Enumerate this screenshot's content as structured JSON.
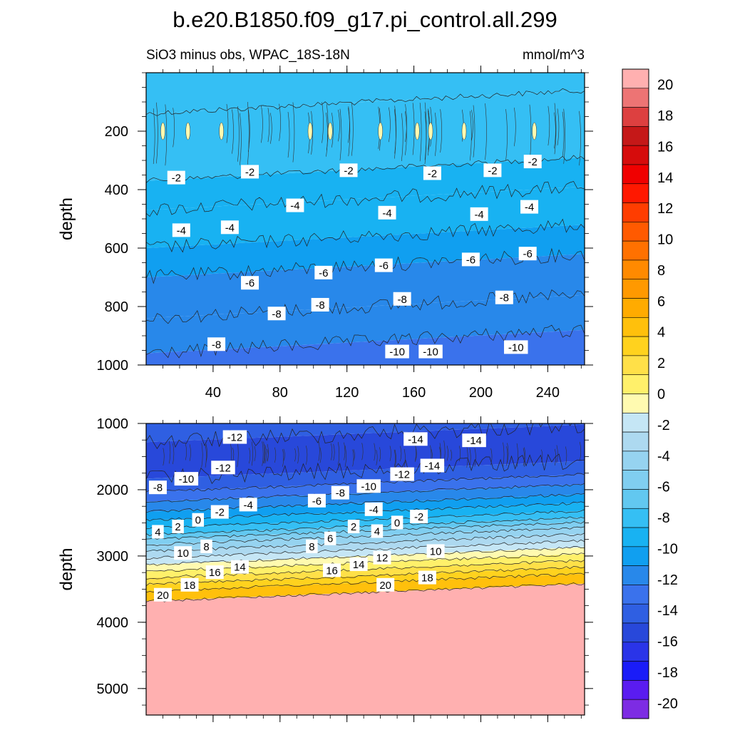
{
  "title": "b.e20.B1850.f09_g17.pi_control.all.299",
  "subtitle": "SiO3 minus obs, WPAC_18S-18N",
  "units": "mmol/m^3",
  "chart_data": [
    {
      "type": "contour",
      "name": "upper-panel",
      "ylabel": "depth",
      "xlim": [
        0,
        262
      ],
      "ylim": [
        0,
        1000
      ],
      "y_reversed": true,
      "x_ticks": [
        40,
        80,
        120,
        160,
        200,
        240
      ],
      "x_tick_labels": [
        "40",
        "80",
        "120",
        "160",
        "200",
        "240"
      ],
      "y_ticks": [
        200,
        400,
        600,
        800,
        1000
      ],
      "y_tick_labels": [
        "200",
        "400",
        "600",
        "800",
        "1000"
      ],
      "bands": [
        {
          "depth_top": 0,
          "depth_bottom": 100,
          "value": -1
        },
        {
          "depth_top": 100,
          "depth_bottom": 330,
          "value": -2
        },
        {
          "depth_top": 330,
          "depth_bottom": 430,
          "value": -3
        },
        {
          "depth_top": 430,
          "depth_bottom": 560,
          "value": -4
        },
        {
          "depth_top": 560,
          "depth_bottom": 660,
          "value": -5
        },
        {
          "depth_top": 660,
          "depth_bottom": 800,
          "value": -7
        },
        {
          "depth_top": 800,
          "depth_bottom": 920,
          "value": -8
        },
        {
          "depth_top": 920,
          "depth_bottom": 1000,
          "value": -9
        }
      ],
      "contour_labels": [
        {
          "text": "-2",
          "x": 18,
          "depth": 360
        },
        {
          "text": "-2",
          "x": 62,
          "depth": 340
        },
        {
          "text": "-2",
          "x": 121,
          "depth": 335
        },
        {
          "text": "-2",
          "x": 171,
          "depth": 345
        },
        {
          "text": "-2",
          "x": 207,
          "depth": 335
        },
        {
          "text": "-2",
          "x": 231,
          "depth": 305
        },
        {
          "text": "-4",
          "x": 21,
          "depth": 540
        },
        {
          "text": "-4",
          "x": 50,
          "depth": 530
        },
        {
          "text": "-4",
          "x": 89,
          "depth": 455
        },
        {
          "text": "-4",
          "x": 144,
          "depth": 480
        },
        {
          "text": "-4",
          "x": 199,
          "depth": 485
        },
        {
          "text": "-4",
          "x": 229,
          "depth": 460
        },
        {
          "text": "-6",
          "x": 62,
          "depth": 720
        },
        {
          "text": "-6",
          "x": 106,
          "depth": 685
        },
        {
          "text": "-6",
          "x": 142,
          "depth": 660
        },
        {
          "text": "-6",
          "x": 194,
          "depth": 640
        },
        {
          "text": "-6",
          "x": 228,
          "depth": 620
        },
        {
          "text": "-8",
          "x": 42,
          "depth": 930
        },
        {
          "text": "-8",
          "x": 78,
          "depth": 825
        },
        {
          "text": "-8",
          "x": 104,
          "depth": 795
        },
        {
          "text": "-8",
          "x": 153,
          "depth": 775
        },
        {
          "text": "-8",
          "x": 214,
          "depth": 770
        },
        {
          "text": "-10",
          "x": 150,
          "depth": 955
        },
        {
          "text": "-10",
          "x": 170,
          "depth": 955
        },
        {
          "text": "-10",
          "x": 221,
          "depth": 940
        }
      ]
    },
    {
      "type": "contour",
      "name": "lower-panel",
      "ylabel": "depth",
      "xlim": [
        0,
        262
      ],
      "ylim": [
        1000,
        5400
      ],
      "y_reversed": true,
      "y_ticks": [
        1000,
        2000,
        3000,
        4000,
        5000
      ],
      "y_tick_labels": [
        "1000",
        "2000",
        "3000",
        "4000",
        "5000"
      ],
      "bands": [
        {
          "depth_top": 1000,
          "depth_bottom": 1150,
          "value": -12
        },
        {
          "depth_top": 1150,
          "depth_bottom": 1700,
          "value": -13
        },
        {
          "depth_top": 1700,
          "depth_bottom": 1900,
          "value": -11
        },
        {
          "depth_top": 1900,
          "depth_bottom": 2050,
          "value": -9
        },
        {
          "depth_top": 2050,
          "depth_bottom": 2200,
          "value": -7
        },
        {
          "depth_top": 2200,
          "depth_bottom": 2330,
          "value": -5
        },
        {
          "depth_top": 2330,
          "depth_bottom": 2450,
          "value": -3
        },
        {
          "depth_top": 2450,
          "depth_bottom": 2550,
          "value": -1
        },
        {
          "depth_top": 2550,
          "depth_bottom": 2620,
          "value": 1
        },
        {
          "depth_top": 2620,
          "depth_bottom": 2700,
          "value": 3
        },
        {
          "depth_top": 2700,
          "depth_bottom": 2800,
          "value": 5
        },
        {
          "depth_top": 2800,
          "depth_bottom": 2900,
          "value": 7
        },
        {
          "depth_top": 2900,
          "depth_bottom": 3000,
          "value": 9
        },
        {
          "depth_top": 3000,
          "depth_bottom": 3100,
          "value": 11
        },
        {
          "depth_top": 3100,
          "depth_bottom": 3200,
          "value": 13
        },
        {
          "depth_top": 3200,
          "depth_bottom": 3300,
          "value": 15
        },
        {
          "depth_top": 3300,
          "depth_bottom": 3400,
          "value": 17
        },
        {
          "depth_top": 3400,
          "depth_bottom": 3550,
          "value": 19
        },
        {
          "depth_top": 3550,
          "depth_bottom": 5400,
          "value": 21
        }
      ],
      "contour_labels": [
        {
          "text": "-12",
          "x": 53,
          "depth": 1210
        },
        {
          "text": "-12",
          "x": 46,
          "depth": 1670
        },
        {
          "text": "-14",
          "x": 161,
          "depth": 1240
        },
        {
          "text": "-14",
          "x": 196,
          "depth": 1260
        },
        {
          "text": "-14",
          "x": 171,
          "depth": 1640
        },
        {
          "text": "-12",
          "x": 153,
          "depth": 1770
        },
        {
          "text": "-10",
          "x": 24,
          "depth": 1840
        },
        {
          "text": "-10",
          "x": 133,
          "depth": 1950
        },
        {
          "text": "-8",
          "x": 7,
          "depth": 1970
        },
        {
          "text": "-8",
          "x": 116,
          "depth": 2050
        },
        {
          "text": "-6",
          "x": 102,
          "depth": 2170
        },
        {
          "text": "-4",
          "x": 61,
          "depth": 2230
        },
        {
          "text": "-4",
          "x": 136,
          "depth": 2300
        },
        {
          "text": "-2",
          "x": 44,
          "depth": 2340
        },
        {
          "text": "-2",
          "x": 163,
          "depth": 2410
        },
        {
          "text": "0",
          "x": 31,
          "depth": 2460
        },
        {
          "text": "0",
          "x": 150,
          "depth": 2500
        },
        {
          "text": "2",
          "x": 19,
          "depth": 2560
        },
        {
          "text": "2",
          "x": 124,
          "depth": 2560
        },
        {
          "text": "4",
          "x": 7,
          "depth": 2640
        },
        {
          "text": "4",
          "x": 138,
          "depth": 2630
        },
        {
          "text": "6",
          "x": 110,
          "depth": 2740
        },
        {
          "text": "8",
          "x": 36,
          "depth": 2860
        },
        {
          "text": "8",
          "x": 99,
          "depth": 2860
        },
        {
          "text": "10",
          "x": 22,
          "depth": 2960
        },
        {
          "text": "10",
          "x": 173,
          "depth": 2930
        },
        {
          "text": "12",
          "x": 141,
          "depth": 3030
        },
        {
          "text": "14",
          "x": 56,
          "depth": 3170
        },
        {
          "text": "14",
          "x": 127,
          "depth": 3130
        },
        {
          "text": "16",
          "x": 41,
          "depth": 3250
        },
        {
          "text": "16",
          "x": 111,
          "depth": 3220
        },
        {
          "text": "18",
          "x": 26,
          "depth": 3440
        },
        {
          "text": "18",
          "x": 168,
          "depth": 3330
        },
        {
          "text": "20",
          "x": 10,
          "depth": 3590
        },
        {
          "text": "20",
          "x": 143,
          "depth": 3440
        }
      ]
    }
  ],
  "colorbar": {
    "levels": [
      -20,
      -18,
      -16,
      -14,
      -12,
      -10,
      -8,
      -6,
      -4,
      -2,
      0,
      2,
      4,
      6,
      8,
      10,
      12,
      14,
      16,
      18,
      20
    ],
    "tick_labels": [
      "20",
      "18",
      "16",
      "14",
      "12",
      "10",
      "8",
      "6",
      "4",
      "2",
      "0",
      "-2",
      "-4",
      "-6",
      "-8",
      "-10",
      "-12",
      "-14",
      "-16",
      "-18",
      "-20"
    ],
    "colors": [
      "#7d2ce3",
      "#5a1cf0",
      "#1a1cf8",
      "#2a34e8",
      "#2848da",
      "#2f5fe2",
      "#3a72ec",
      "#2888ea",
      "#109ff0",
      "#18b2f2",
      "#35bff4",
      "#62c8f0",
      "#80cef0",
      "#96d3f0",
      "#add9f0",
      "#c5e6f5",
      "#fffab0",
      "#fff06a",
      "#ffe048",
      "#ffd21e",
      "#ffc00c",
      "#ffab00",
      "#ff9900",
      "#ff8a00",
      "#ff7100",
      "#ff5a00",
      "#ff3d00",
      "#ff1800",
      "#f00000",
      "#d60c0c",
      "#c51818",
      "#dd4040",
      "#ed7474",
      "#ffb0b0"
    ]
  }
}
